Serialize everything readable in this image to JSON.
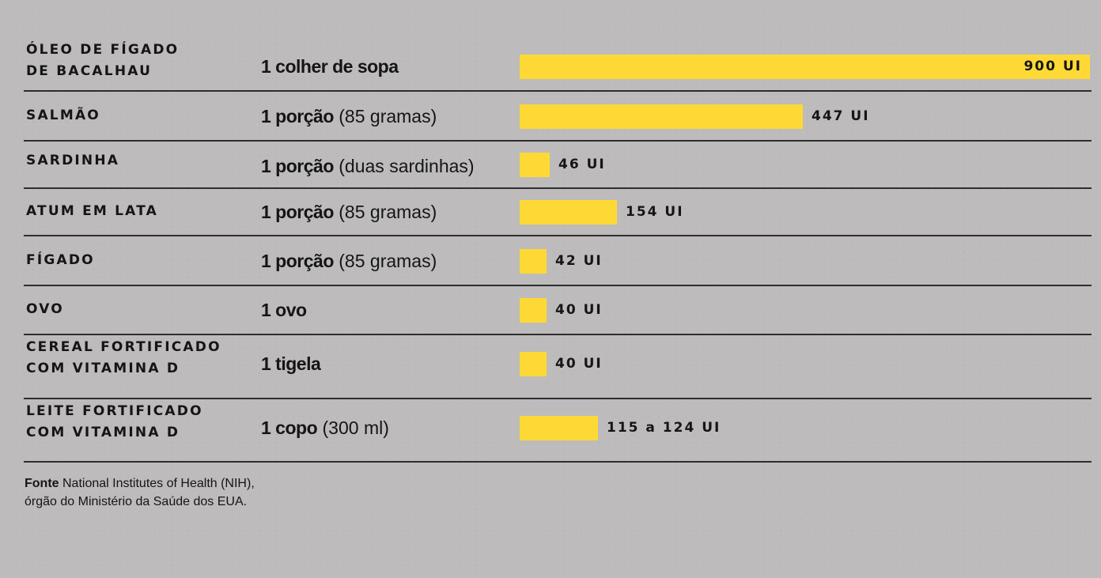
{
  "chart_data": {
    "type": "bar",
    "orientation": "horizontal",
    "unit": "UI",
    "bar_color": "#fed935",
    "rows": [
      {
        "food": "ÓLEO DE FÍGADO\nDE BACALHAU",
        "portion_qty": "1 colher de sopa",
        "portion_detail": "",
        "value": 900,
        "value_label": "900 UI"
      },
      {
        "food": "SALMÃO",
        "portion_qty": "1 porção",
        "portion_detail": "(85 gramas)",
        "value": 447,
        "value_label": "447 UI"
      },
      {
        "food": "SARDINHA",
        "portion_qty": "1 porção",
        "portion_detail": "(duas sardinhas)",
        "value": 46,
        "value_label": "46 UI"
      },
      {
        "food": "ATUM EM LATA",
        "portion_qty": "1 porção",
        "portion_detail": "(85 gramas)",
        "value": 154,
        "value_label": "154 UI"
      },
      {
        "food": "FÍGADO",
        "portion_qty": "1 porção",
        "portion_detail": "(85 gramas)",
        "value": 42,
        "value_label": "42 UI"
      },
      {
        "food": "OVO",
        "portion_qty": "1 ovo",
        "portion_detail": "",
        "value": 40,
        "value_label": "40 UI"
      },
      {
        "food": "CEREAL FORTIFICADO\nCOM VITAMINA D",
        "portion_qty": "1 tigela",
        "portion_detail": "",
        "value": 40,
        "value_label": "40 UI"
      },
      {
        "food": "LEITE FORTIFICADO\nCOM VITAMINA D",
        "portion_qty": "1 copo",
        "portion_detail": "(300 ml)",
        "value": 124,
        "value_label": "115 a 124 UI"
      }
    ],
    "xlim": [
      0,
      900
    ]
  },
  "source": {
    "label": "Fonte",
    "text": " National Institutes of Health (NIH),\nórgão do Ministério da Saúde dos EUA."
  }
}
